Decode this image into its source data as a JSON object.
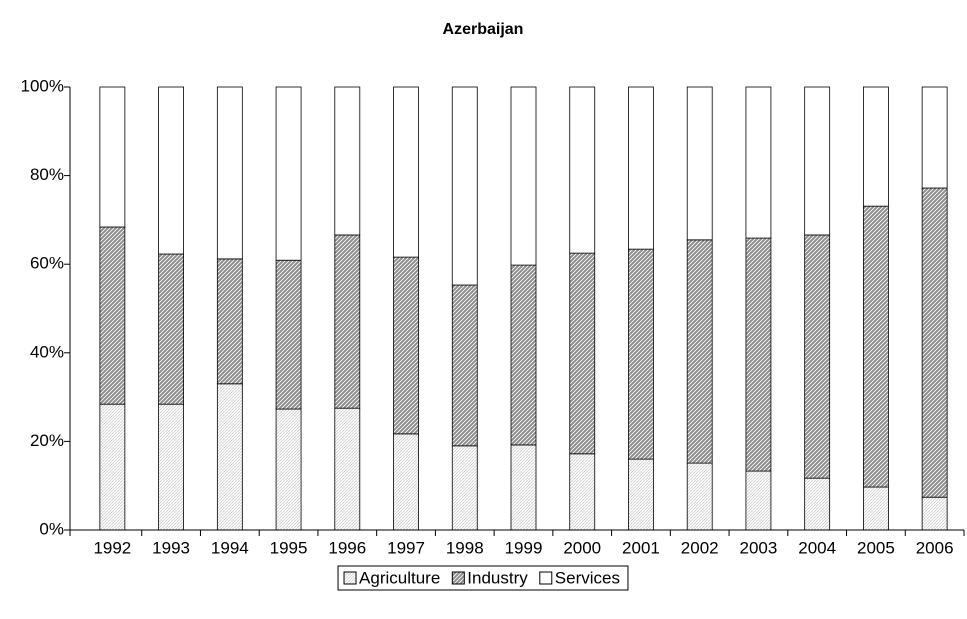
{
  "chart_data": {
    "type": "stacked-bar",
    "title": "Azerbaijan",
    "categories": [
      "1992",
      "1993",
      "1994",
      "1995",
      "1996",
      "1997",
      "1998",
      "1999",
      "2000",
      "2001",
      "2002",
      "2003",
      "2004",
      "2005",
      "2006"
    ],
    "series": [
      {
        "name": "Agriculture",
        "color": "#d4d4d4",
        "values": [
          28.4,
          28.4,
          33.0,
          27.3,
          27.5,
          21.7,
          19.0,
          19.2,
          17.2,
          16.0,
          15.1,
          13.3,
          11.7,
          9.7,
          7.4
        ]
      },
      {
        "name": "Industry",
        "color": "#8c8c8c",
        "values": [
          40.0,
          33.9,
          28.2,
          33.6,
          39.1,
          39.9,
          36.3,
          40.6,
          45.3,
          47.4,
          50.4,
          52.6,
          54.9,
          63.4,
          69.8
        ]
      },
      {
        "name": "Services",
        "color": "#ffffff",
        "values": [
          31.6,
          37.7,
          38.8,
          39.1,
          33.4,
          38.4,
          44.7,
          40.2,
          37.5,
          36.6,
          34.5,
          34.1,
          33.4,
          26.9,
          22.8
        ]
      }
    ],
    "ylim": [
      0,
      100
    ],
    "yticks": [
      {
        "value": 0,
        "label": "0%"
      },
      {
        "value": 20,
        "label": "20%"
      },
      {
        "value": 40,
        "label": "40%"
      },
      {
        "value": 60,
        "label": "60%"
      },
      {
        "value": 80,
        "label": "80%"
      },
      {
        "value": 100,
        "label": "100%"
      }
    ],
    "legend": "bottom"
  }
}
